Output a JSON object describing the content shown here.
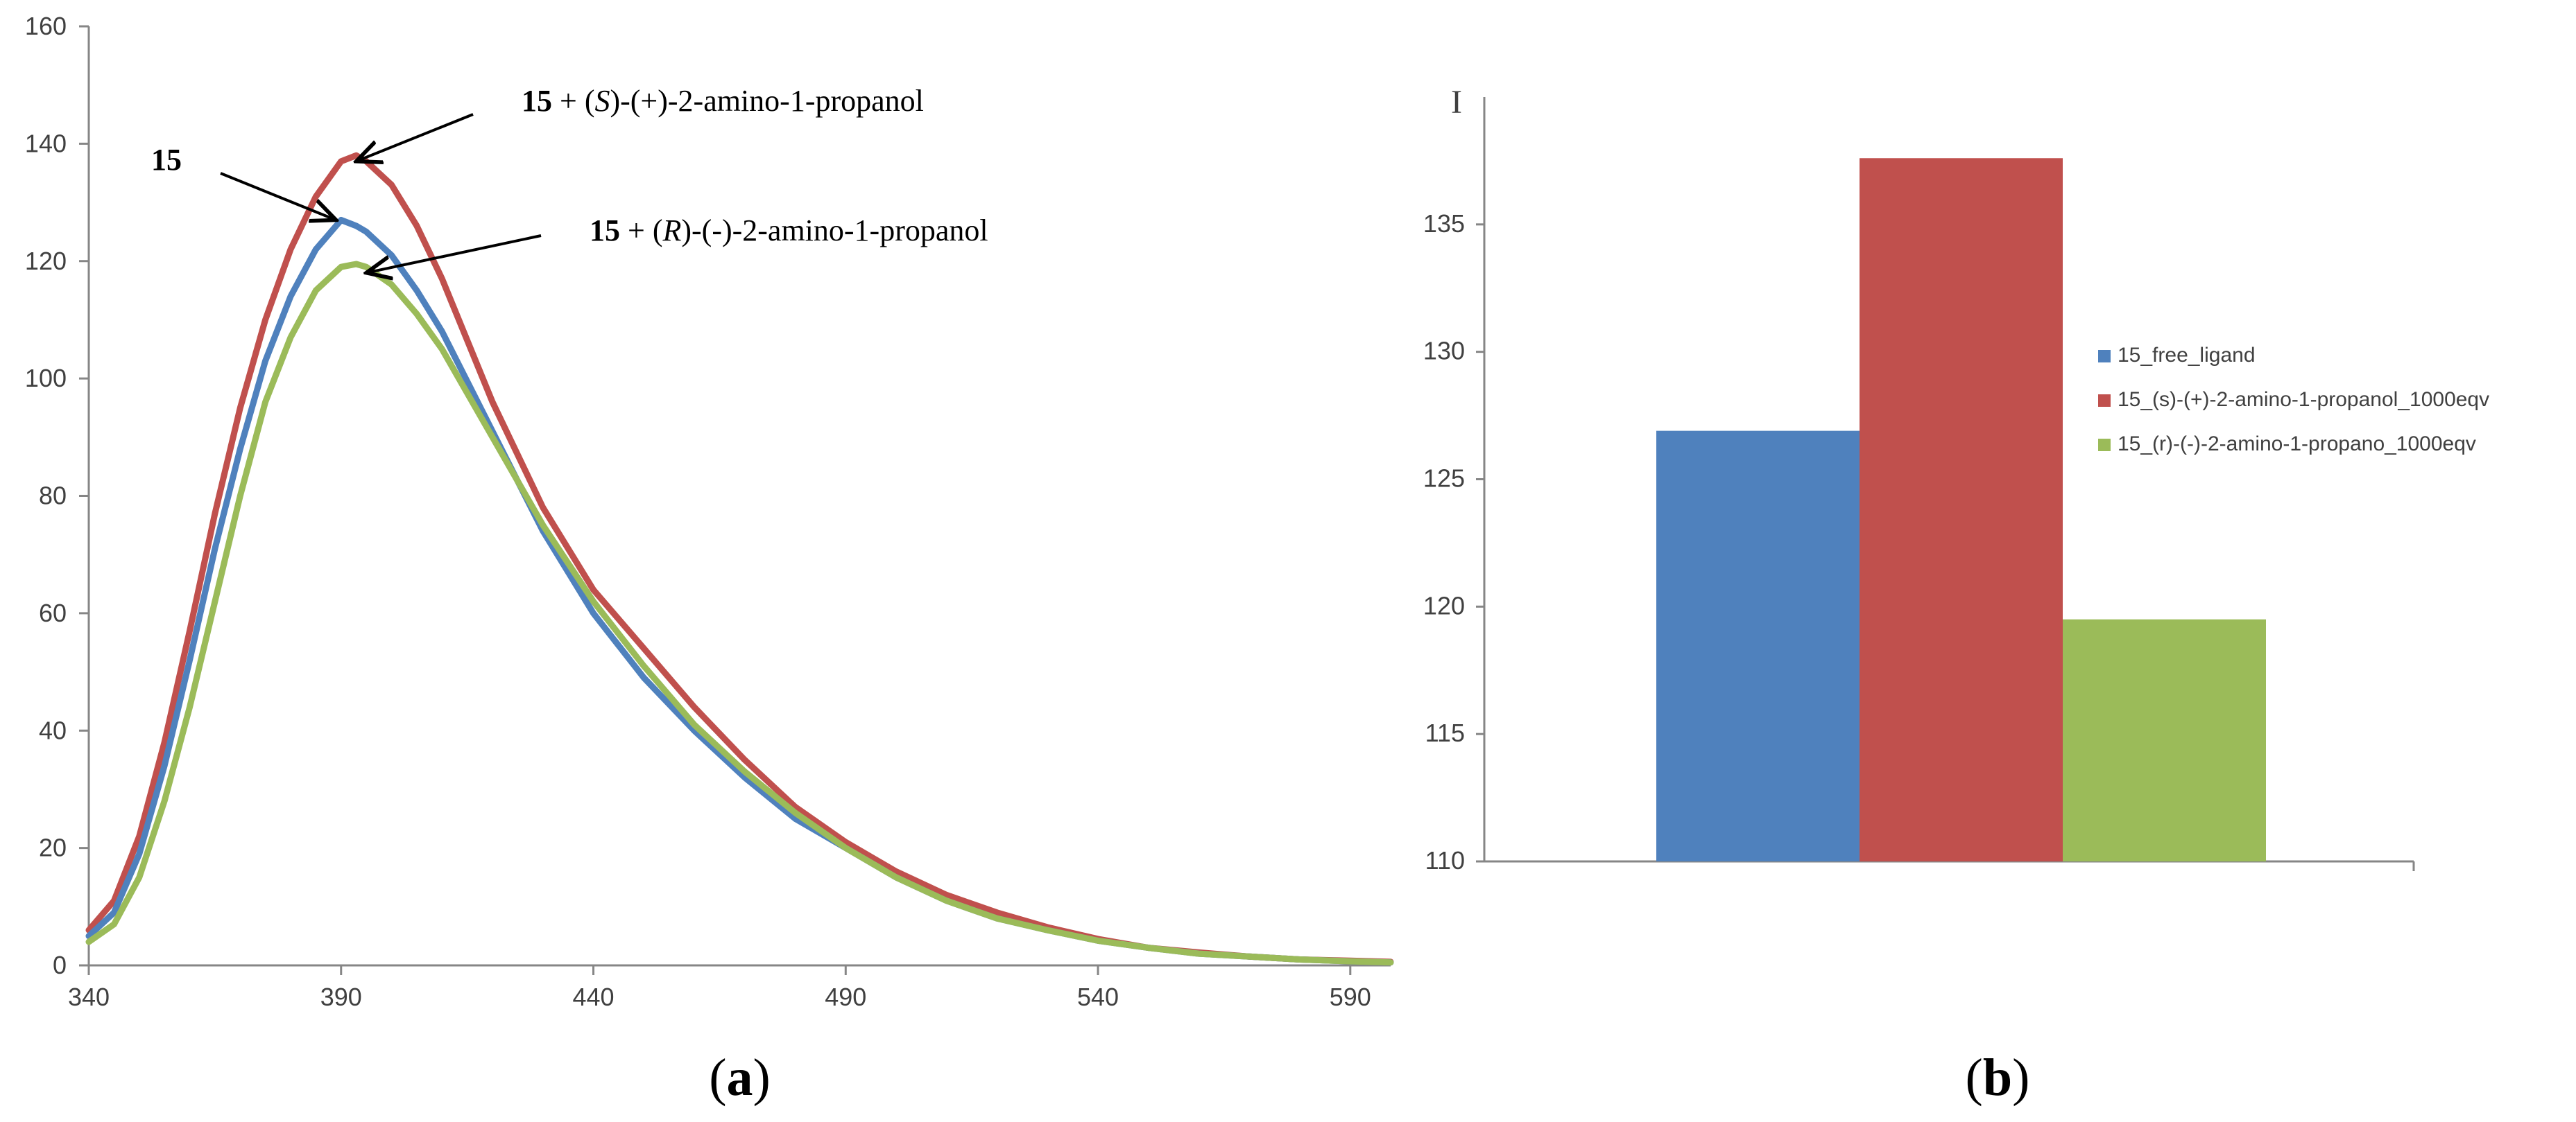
{
  "chart_data": [
    {
      "type": "line",
      "panel_label": "a",
      "xlim": [
        340,
        598
      ],
      "ylim": [
        0,
        160
      ],
      "x_ticks": [
        340,
        390,
        440,
        490,
        540,
        590
      ],
      "y_ticks": [
        0,
        20,
        40,
        60,
        80,
        100,
        120,
        140,
        160
      ],
      "grid": false,
      "series": [
        {
          "color": "#c0504d",
          "points": [
            [
              340,
              6
            ],
            [
              345,
              11
            ],
            [
              350,
              22
            ],
            [
              355,
              38
            ],
            [
              360,
              57
            ],
            [
              365,
              77
            ],
            [
              370,
              95
            ],
            [
              375,
              110
            ],
            [
              380,
              122
            ],
            [
              385,
              131
            ],
            [
              390,
              137
            ],
            [
              393,
              138
            ],
            [
              395,
              137
            ],
            [
              400,
              133
            ],
            [
              405,
              126
            ],
            [
              410,
              117
            ],
            [
              420,
              96
            ],
            [
              430,
              78
            ],
            [
              440,
              64
            ],
            [
              450,
              54
            ],
            [
              460,
              44
            ],
            [
              470,
              35
            ],
            [
              480,
              27
            ],
            [
              490,
              21
            ],
            [
              500,
              16
            ],
            [
              510,
              12
            ],
            [
              520,
              9
            ],
            [
              530,
              6.5
            ],
            [
              540,
              4.5
            ],
            [
              550,
              3
            ],
            [
              560,
              2.2
            ],
            [
              570,
              1.5
            ],
            [
              580,
              1
            ],
            [
              590,
              0.8
            ],
            [
              598,
              0.6
            ]
          ]
        },
        {
          "color": "#4f81bd",
          "points": [
            [
              340,
              5
            ],
            [
              345,
              9
            ],
            [
              350,
              19
            ],
            [
              355,
              34
            ],
            [
              360,
              52
            ],
            [
              365,
              71
            ],
            [
              370,
              88
            ],
            [
              375,
              103
            ],
            [
              380,
              114
            ],
            [
              385,
              122
            ],
            [
              390,
              127
            ],
            [
              393,
              126
            ],
            [
              395,
              125
            ],
            [
              400,
              121
            ],
            [
              405,
              115
            ],
            [
              410,
              108
            ],
            [
              420,
              91
            ],
            [
              430,
              74
            ],
            [
              440,
              60
            ],
            [
              450,
              49
            ],
            [
              460,
              40
            ],
            [
              470,
              32
            ],
            [
              480,
              25
            ],
            [
              490,
              20
            ],
            [
              500,
              15
            ],
            [
              510,
              11
            ],
            [
              520,
              8
            ],
            [
              530,
              6
            ],
            [
              540,
              4.2
            ],
            [
              550,
              3
            ],
            [
              560,
              2
            ],
            [
              570,
              1.5
            ],
            [
              580,
              1
            ],
            [
              590,
              0.7
            ],
            [
              598,
              0.5
            ]
          ]
        },
        {
          "color": "#9bbb59",
          "points": [
            [
              340,
              4
            ],
            [
              345,
              7
            ],
            [
              350,
              15
            ],
            [
              355,
              28
            ],
            [
              360,
              44
            ],
            [
              365,
              62
            ],
            [
              370,
              80
            ],
            [
              375,
              96
            ],
            [
              380,
              107
            ],
            [
              385,
              115
            ],
            [
              390,
              119
            ],
            [
              393,
              119.5
            ],
            [
              395,
              119
            ],
            [
              400,
              116
            ],
            [
              405,
              111
            ],
            [
              410,
              105
            ],
            [
              420,
              90
            ],
            [
              430,
              75
            ],
            [
              440,
              62
            ],
            [
              450,
              51
            ],
            [
              460,
              41
            ],
            [
              470,
              33
            ],
            [
              480,
              26
            ],
            [
              490,
              20
            ],
            [
              500,
              15
            ],
            [
              510,
              11
            ],
            [
              520,
              8
            ],
            [
              530,
              6
            ],
            [
              540,
              4.2
            ],
            [
              550,
              3
            ],
            [
              560,
              2
            ],
            [
              570,
              1.5
            ],
            [
              580,
              1
            ],
            [
              590,
              0.7
            ],
            [
              598,
              0.5
            ]
          ]
        }
      ],
      "annotations": [
        {
          "bold": "15",
          "rest": "",
          "italic": "",
          "tail": "",
          "point_to": [
            389,
            127
          ]
        },
        {
          "bold": "15",
          "rest": " + (",
          "italic": "S",
          "tail": ")-(+)-2-amino-1-propanol",
          "point_to": [
            393,
            137
          ]
        },
        {
          "bold": "15",
          "rest": " + (",
          "italic": "R",
          "tail": ")-(-)-2-amino-1-propanol",
          "point_to": [
            395,
            118
          ]
        }
      ]
    },
    {
      "type": "bar",
      "panel_label": "b",
      "ylabel": "I",
      "ylim": [
        110,
        140
      ],
      "y_ticks": [
        110,
        115,
        120,
        125,
        130,
        135
      ],
      "grid": false,
      "legend_position": "right",
      "series": [
        {
          "name": "15_free_ligand",
          "value": 126.9,
          "color": "#4f81bd"
        },
        {
          "name": "15_(s)-(+)-2-amino-1-propanol_1000eqv",
          "value": 137.6,
          "color": "#c0504d"
        },
        {
          "name": "15_(r)-(-)-2-amino-1-propano_1000eqv",
          "value": 119.5,
          "color": "#9bbb59"
        }
      ]
    }
  ]
}
